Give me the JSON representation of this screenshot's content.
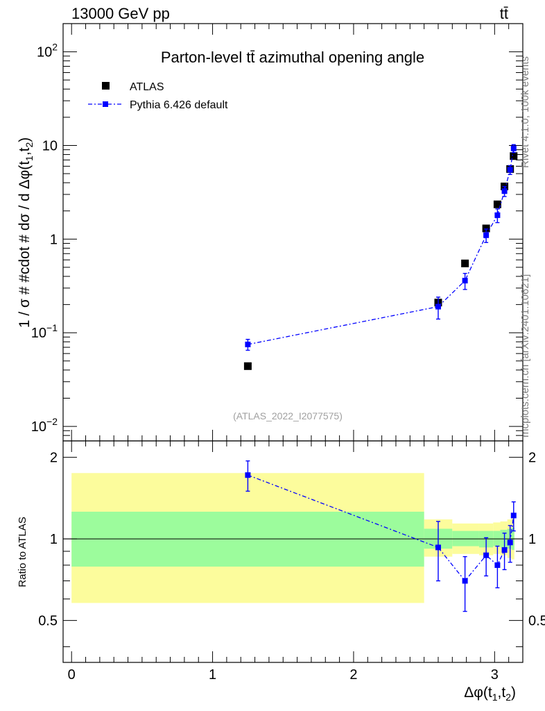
{
  "header": {
    "energy_label": "13000 GeV pp",
    "process_label": "tt̄"
  },
  "side_labels": {
    "rivet": "Rivet 4.1.0,  100k events",
    "mcplots": "mcplots.cern.ch [arXiv:2401.10621]"
  },
  "chart_data": [
    {
      "type": "scatter",
      "panel": "main",
      "title": "Parton-level tt̄ azimuthal opening angle",
      "watermark": "(ATLAS_2022_I2077575)",
      "ylabel": "1 / σ # #cdot # dσ / d Δφ(t1,t2)",
      "yscale": "log",
      "ylim": [
        0.007,
        200
      ],
      "xlim": [
        -0.06,
        3.2
      ],
      "ytick_labels": [
        "10−2",
        "10−1",
        "1",
        "10",
        "102"
      ],
      "legend": [
        "ATLAS",
        "Pythia 6.426 default"
      ],
      "legend_position": "top-left",
      "series": [
        {
          "name": "ATLAS",
          "color": "#000000",
          "x": [
            1.25,
            2.6,
            2.79,
            2.94,
            3.02,
            3.07,
            3.11,
            3.135
          ],
          "y": [
            0.044,
            0.21,
            0.55,
            1.3,
            2.35,
            3.65,
            5.6,
            7.7
          ]
        },
        {
          "name": "Pythia 6.426 default",
          "color": "#0000ff",
          "x": [
            1.25,
            2.6,
            2.79,
            2.94,
            3.02,
            3.07,
            3.11,
            3.135
          ],
          "y": [
            0.075,
            0.19,
            0.36,
            1.1,
            1.8,
            3.25,
            5.5,
            9.3
          ],
          "yerr": [
            0.01,
            0.05,
            0.07,
            0.18,
            0.3,
            0.4,
            0.6,
            0.9
          ]
        }
      ]
    },
    {
      "type": "scatter",
      "panel": "ratio",
      "ylabel": "Ratio to ATLAS",
      "xlabel": "Δφ(t1,t2)",
      "xlim": [
        -0.06,
        3.2
      ],
      "ylim": [
        0.35,
        2.3
      ],
      "xticks": [
        0,
        1,
        2,
        3
      ],
      "yticks": [
        0.5,
        1,
        2
      ],
      "reference_line": 1,
      "bands": {
        "bins": [
          [
            0,
            2.5
          ],
          [
            2.5,
            2.7
          ],
          [
            2.7,
            2.89
          ],
          [
            2.89,
            2.99
          ],
          [
            2.99,
            3.04
          ],
          [
            3.04,
            3.09
          ],
          [
            3.09,
            3.12
          ],
          [
            3.12,
            3.14
          ]
        ],
        "stat_inner": [
          [
            0.79,
            1.26
          ],
          [
            0.92,
            1.09
          ],
          [
            0.94,
            1.07
          ],
          [
            0.93,
            1.07
          ],
          [
            0.94,
            1.07
          ],
          [
            0.93,
            1.08
          ],
          [
            0.92,
            1.09
          ],
          [
            0.91,
            1.1
          ]
        ],
        "total_outer": [
          [
            0.58,
            1.75
          ],
          [
            0.86,
            1.18
          ],
          [
            0.88,
            1.14
          ],
          [
            0.87,
            1.14
          ],
          [
            0.88,
            1.15
          ],
          [
            0.87,
            1.16
          ],
          [
            0.85,
            1.18
          ],
          [
            0.84,
            1.19
          ]
        ],
        "inner_color": "#9cfc9c",
        "outer_color": "#fcfc9c"
      },
      "series": [
        {
          "name": "Pythia 6.426 default / ATLAS",
          "color": "#0000ff",
          "x": [
            1.25,
            2.6,
            2.79,
            2.94,
            3.02,
            3.07,
            3.11,
            3.135
          ],
          "y": [
            1.72,
            0.93,
            0.7,
            0.87,
            0.8,
            0.91,
            0.97,
            1.22
          ],
          "yerr": [
            0.22,
            0.23,
            0.16,
            0.14,
            0.14,
            0.14,
            0.15,
            0.15
          ]
        }
      ]
    }
  ]
}
